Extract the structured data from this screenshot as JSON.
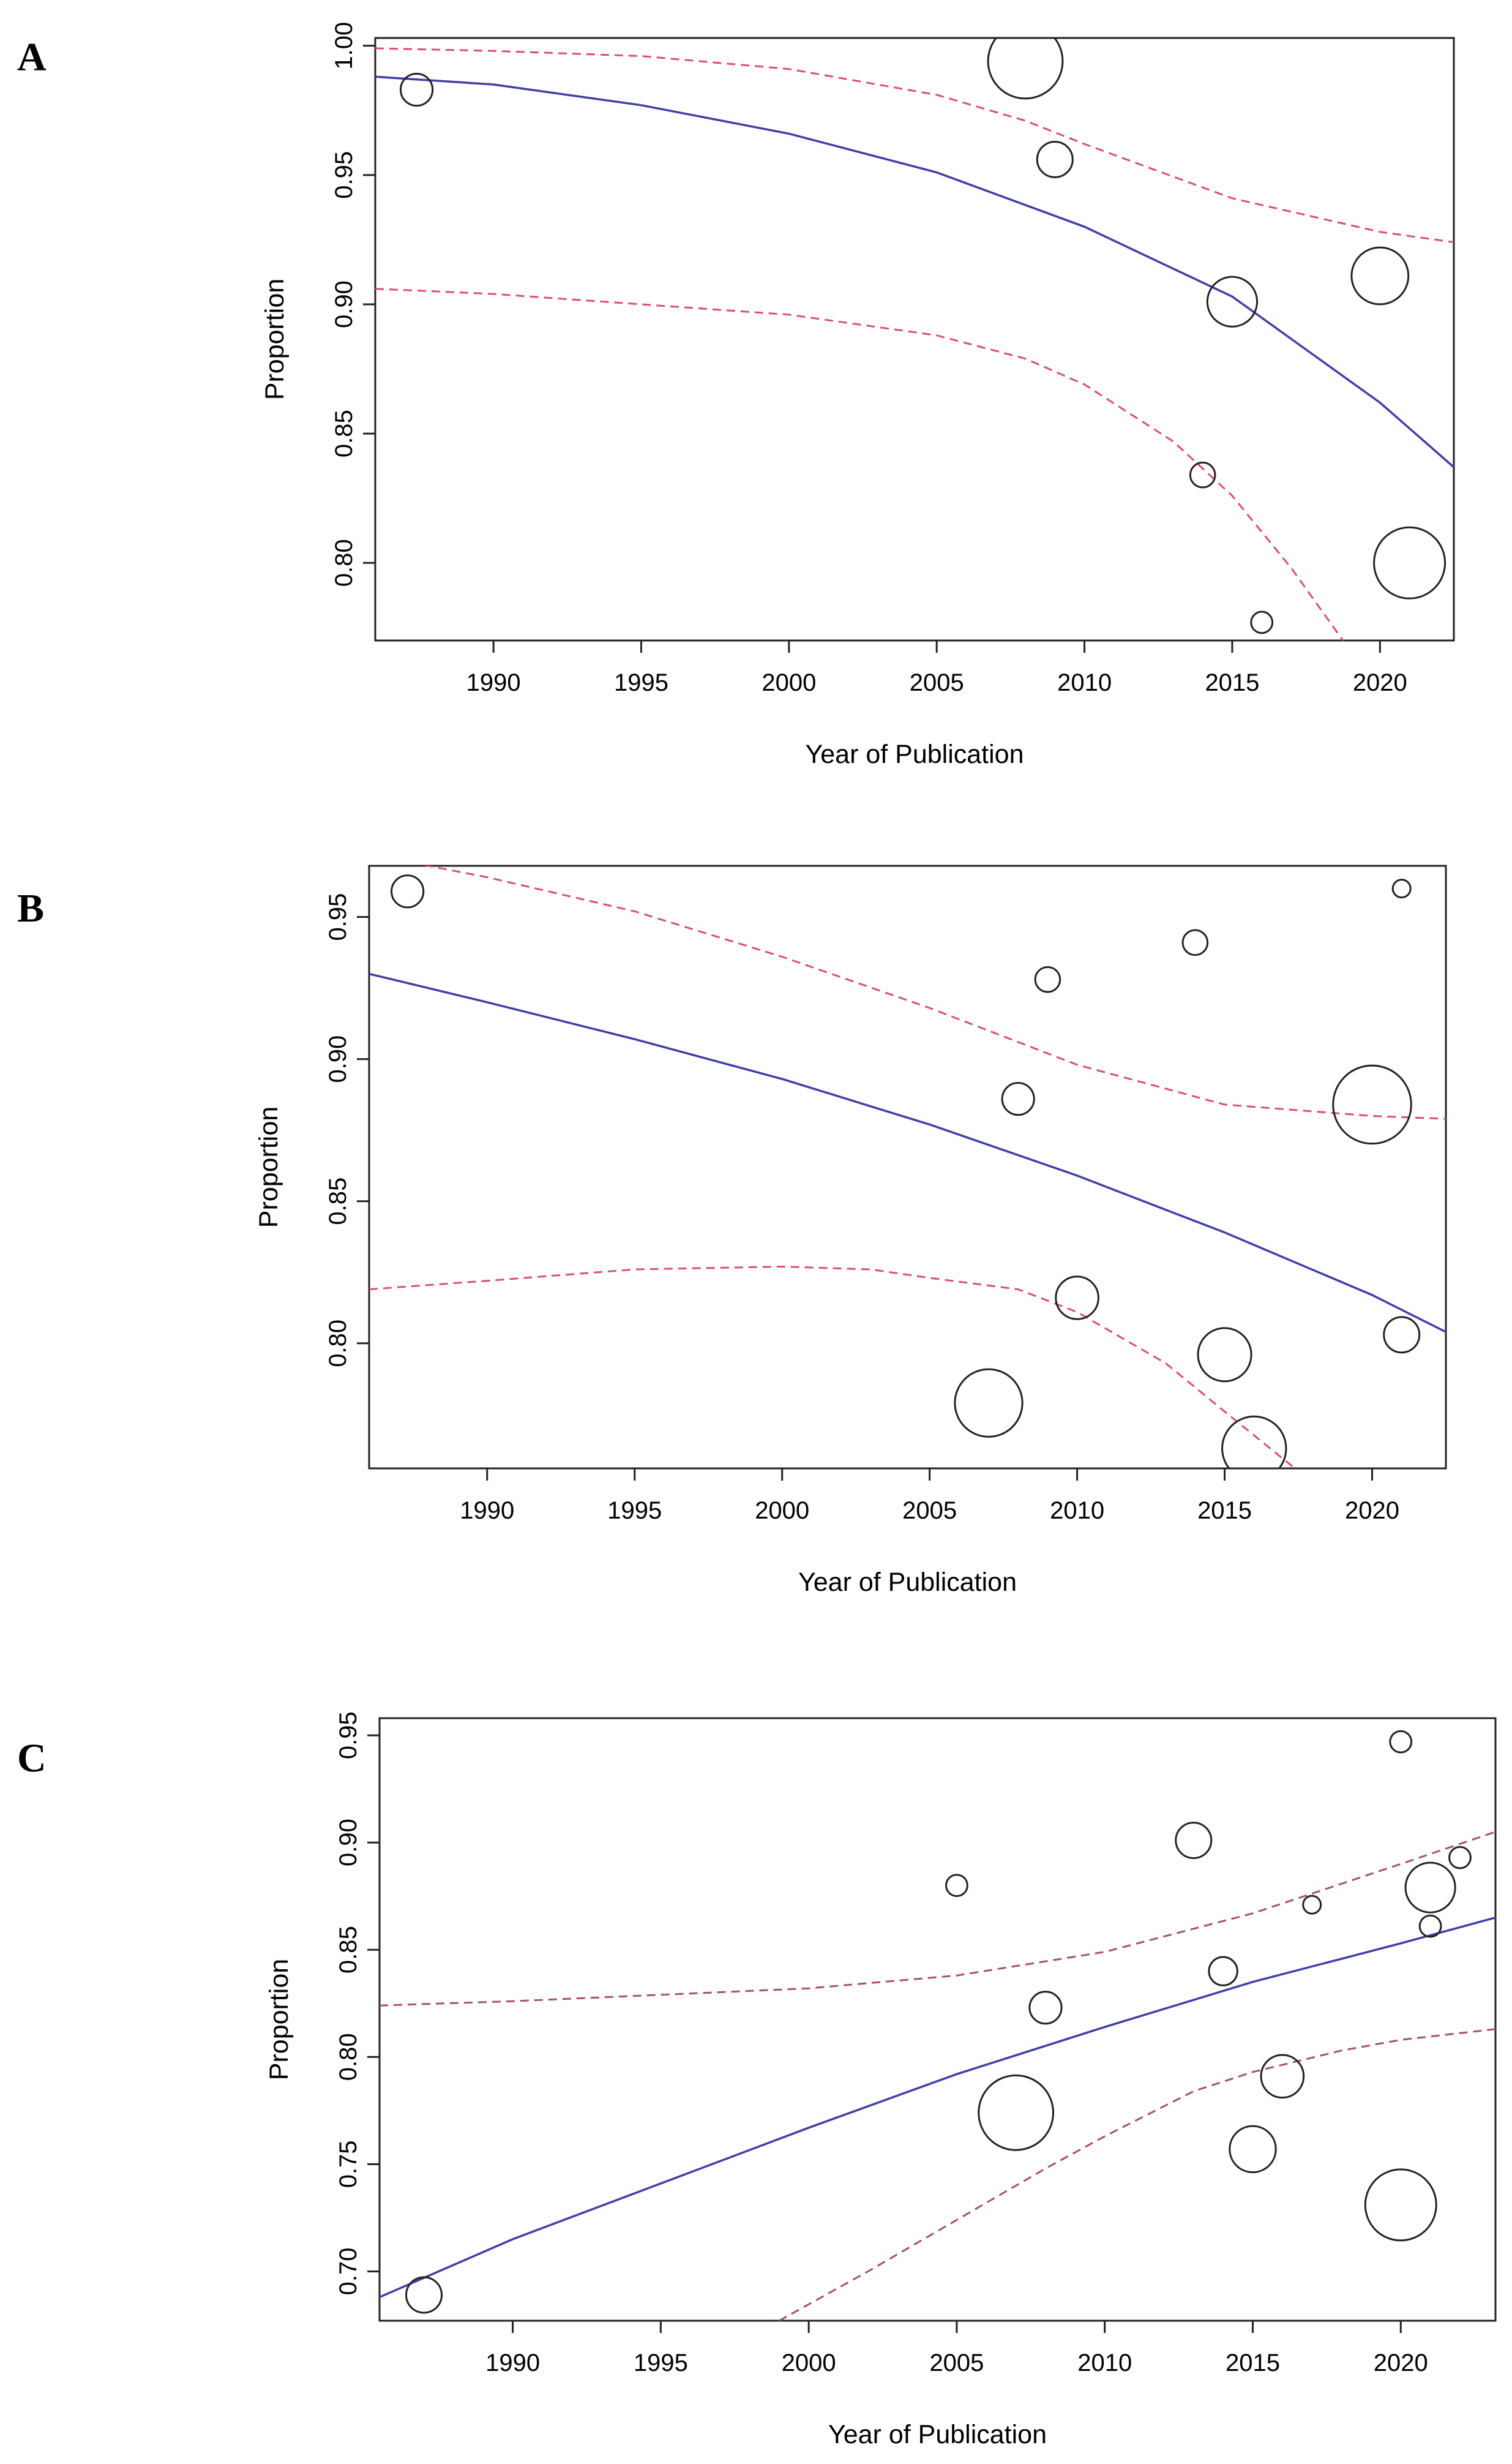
{
  "chart_data": [
    {
      "type": "scatter",
      "panel": "A",
      "title": "",
      "xlabel": "Year of Publication",
      "ylabel": "Proportion",
      "xlim": [
        1986,
        2022.5
      ],
      "ylim": [
        0.77,
        1.003
      ],
      "xticks": [
        1990,
        1995,
        2000,
        2005,
        2010,
        2015,
        2020
      ],
      "xtick_labels": [
        "1990",
        "1995",
        "2000",
        "2005",
        "2010",
        "2015",
        "2020"
      ],
      "yticks": [
        0.8,
        0.85,
        0.9,
        0.95,
        1.0
      ],
      "ytick_labels": [
        "0.80",
        "0.85",
        "0.90",
        "0.95",
        "1.00"
      ],
      "points": [
        {
          "x": 1987.4,
          "y": 0.983,
          "size": 0.9
        },
        {
          "x": 2008.0,
          "y": 0.994,
          "size": 2.1
        },
        {
          "x": 2009.0,
          "y": 0.956,
          "size": 1.0
        },
        {
          "x": 2014.0,
          "y": 0.834,
          "size": 0.7
        },
        {
          "x": 2015.0,
          "y": 0.901,
          "size": 1.4
        },
        {
          "x": 2016.0,
          "y": 0.777,
          "size": 0.6
        },
        {
          "x": 2020.0,
          "y": 0.911,
          "size": 1.6
        },
        {
          "x": 2021.0,
          "y": 0.8,
          "size": 2.0
        }
      ],
      "fit": {
        "x": [
          1986,
          1990,
          1995,
          2000,
          2005,
          2010,
          2015,
          2020,
          2022.5
        ],
        "y": [
          0.988,
          0.985,
          0.977,
          0.966,
          0.951,
          0.93,
          0.903,
          0.862,
          0.837
        ]
      },
      "ci_upper": {
        "x": [
          1986,
          1990,
          1995,
          2000,
          2005,
          2008,
          2010,
          2015,
          2020,
          2022.5
        ],
        "y": [
          0.999,
          0.998,
          0.996,
          0.991,
          0.981,
          0.971,
          0.962,
          0.941,
          0.928,
          0.924
        ]
      },
      "ci_lower": {
        "x": [
          1986,
          1990,
          1995,
          2000,
          2005,
          2008,
          2010,
          2013,
          2015,
          2017,
          2018.5,
          2019
        ],
        "y": [
          0.906,
          0.904,
          0.9,
          0.896,
          0.888,
          0.879,
          0.869,
          0.847,
          0.826,
          0.798,
          0.774,
          0.766
        ]
      }
    },
    {
      "type": "scatter",
      "panel": "B",
      "title": "",
      "xlabel": "Year of Publication",
      "ylabel": "Proportion",
      "xlim": [
        1986,
        2022.5
      ],
      "ylim": [
        0.756,
        0.968
      ],
      "xticks": [
        1990,
        1995,
        2000,
        2005,
        2010,
        2015,
        2020
      ],
      "xtick_labels": [
        "1990",
        "1995",
        "2000",
        "2005",
        "2010",
        "2015",
        "2020"
      ],
      "yticks": [
        0.8,
        0.85,
        0.9,
        0.95
      ],
      "ytick_labels": [
        "0.80",
        "0.85",
        "0.90",
        "0.95"
      ],
      "points": [
        {
          "x": 1987.3,
          "y": 0.959,
          "size": 0.9
        },
        {
          "x": 2007.0,
          "y": 0.779,
          "size": 1.9
        },
        {
          "x": 2008.0,
          "y": 0.886,
          "size": 0.9
        },
        {
          "x": 2009.0,
          "y": 0.928,
          "size": 0.7
        },
        {
          "x": 2010.0,
          "y": 0.816,
          "size": 1.2
        },
        {
          "x": 2014.0,
          "y": 0.941,
          "size": 0.7
        },
        {
          "x": 2015.0,
          "y": 0.796,
          "size": 1.5
        },
        {
          "x": 2016.0,
          "y": 0.763,
          "size": 1.8
        },
        {
          "x": 2020.0,
          "y": 0.884,
          "size": 2.2
        },
        {
          "x": 2021.0,
          "y": 0.96,
          "size": 0.5
        },
        {
          "x": 2021.0,
          "y": 0.803,
          "size": 1.0
        }
      ],
      "fit": {
        "x": [
          1986,
          1990,
          1995,
          2000,
          2005,
          2010,
          2015,
          2020,
          2022.5
        ],
        "y": [
          0.93,
          0.92,
          0.907,
          0.893,
          0.877,
          0.859,
          0.839,
          0.817,
          0.804
        ]
      },
      "ci_upper": {
        "x": [
          1986,
          1988,
          1990,
          1995,
          2000,
          2005,
          2008,
          2010,
          2015,
          2020,
          2022.5
        ],
        "y": [
          0.972,
          0.968,
          0.964,
          0.952,
          0.936,
          0.918,
          0.906,
          0.898,
          0.884,
          0.88,
          0.879
        ]
      },
      "ci_lower": {
        "x": [
          1986,
          1990,
          1995,
          2000,
          2003,
          2005,
          2008,
          2010,
          2013,
          2015,
          2017.5
        ],
        "y": [
          0.819,
          0.822,
          0.826,
          0.827,
          0.826,
          0.823,
          0.819,
          0.811,
          0.793,
          0.776,
          0.755
        ]
      }
    },
    {
      "type": "scatter",
      "panel": "C",
      "title": "",
      "xlabel": "Year of Publication",
      "ylabel": "Proportion",
      "xlim": [
        1985.5,
        2023.2
      ],
      "ylim": [
        0.677,
        0.958
      ],
      "xticks": [
        1990,
        1995,
        2000,
        2005,
        2010,
        2015,
        2020
      ],
      "xtick_labels": [
        "1990",
        "1995",
        "2000",
        "2005",
        "2010",
        "2015",
        "2020"
      ],
      "yticks": [
        0.7,
        0.75,
        0.8,
        0.85,
        0.9,
        0.95
      ],
      "ytick_labels": [
        "0.70",
        "0.75",
        "0.80",
        "0.85",
        "0.90",
        "0.95"
      ],
      "points": [
        {
          "x": 1987.0,
          "y": 0.689,
          "size": 1.0
        },
        {
          "x": 2005.0,
          "y": 0.88,
          "size": 0.6
        },
        {
          "x": 2007.0,
          "y": 0.774,
          "size": 2.1
        },
        {
          "x": 2008.0,
          "y": 0.823,
          "size": 0.9
        },
        {
          "x": 2013.0,
          "y": 0.901,
          "size": 1.0
        },
        {
          "x": 2014.0,
          "y": 0.84,
          "size": 0.8
        },
        {
          "x": 2015.0,
          "y": 0.757,
          "size": 1.3
        },
        {
          "x": 2016.0,
          "y": 0.791,
          "size": 1.2
        },
        {
          "x": 2017.0,
          "y": 0.871,
          "size": 0.5
        },
        {
          "x": 2020.0,
          "y": 0.947,
          "size": 0.6
        },
        {
          "x": 2020.0,
          "y": 0.731,
          "size": 2.0
        },
        {
          "x": 2021.0,
          "y": 0.879,
          "size": 1.4
        },
        {
          "x": 2021.0,
          "y": 0.861,
          "size": 0.6
        },
        {
          "x": 2022.0,
          "y": 0.893,
          "size": 0.6
        }
      ],
      "fit": {
        "x": [
          1985.5,
          1990,
          1995,
          2000,
          2005,
          2010,
          2015,
          2020,
          2023.2
        ],
        "y": [
          0.688,
          0.715,
          0.741,
          0.767,
          0.792,
          0.814,
          0.835,
          0.853,
          0.865
        ]
      },
      "ci_upper": {
        "x": [
          1985.5,
          1990,
          1995,
          2000,
          2005,
          2010,
          2015,
          2020,
          2023.2
        ],
        "y": [
          0.824,
          0.826,
          0.829,
          0.832,
          0.838,
          0.849,
          0.867,
          0.89,
          0.905
        ]
      },
      "ci_lower": {
        "x": [
          1999,
          2002,
          2005,
          2008,
          2010,
          2013,
          2015,
          2018,
          2020,
          2023.2
        ],
        "y": [
          0.677,
          0.7,
          0.724,
          0.748,
          0.763,
          0.784,
          0.793,
          0.803,
          0.808,
          0.813
        ]
      }
    }
  ],
  "colors": {
    "fit": "#3f3fa6",
    "ci": "#d9506e",
    "ci_c": "#a8506a",
    "point": "#222222",
    "frame": "#222222"
  }
}
